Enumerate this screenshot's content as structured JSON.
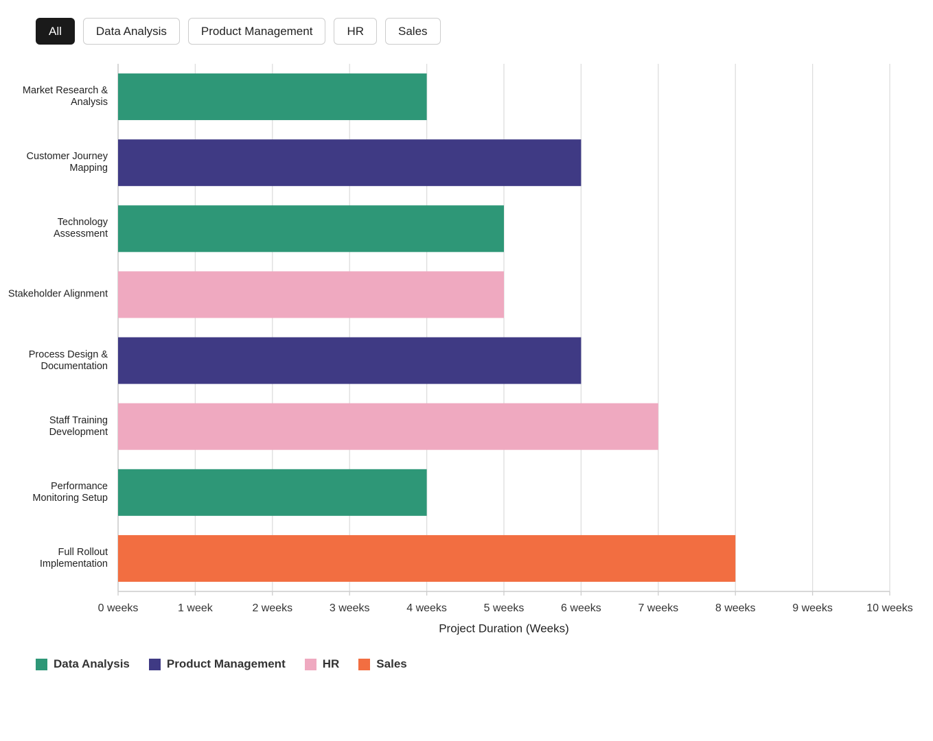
{
  "filters": [
    "All",
    "Data Analysis",
    "Product Management",
    "HR",
    "Sales"
  ],
  "active_filter": 0,
  "chart_data": {
    "type": "bar",
    "orientation": "horizontal",
    "categories": [
      "Market Research & Analysis",
      "Customer Journey Mapping",
      "Technology Assessment",
      "Stakeholder Alignment",
      "Process Design & Documentation",
      "Staff Training Development",
      "Performance Monitoring Setup",
      "Full Rollout Implementation"
    ],
    "series": [
      {
        "name": "Data Analysis",
        "color": "#2e9777",
        "values": [
          4,
          null,
          5,
          null,
          null,
          null,
          4,
          null
        ]
      },
      {
        "name": "Product Management",
        "color": "#3f3a84",
        "values": [
          null,
          6,
          null,
          null,
          6,
          null,
          null,
          null
        ]
      },
      {
        "name": "HR",
        "color": "#efa9c0",
        "values": [
          null,
          null,
          null,
          5,
          null,
          7,
          null,
          null
        ]
      },
      {
        "name": "Sales",
        "color": "#f26e41",
        "values": [
          null,
          null,
          null,
          null,
          null,
          null,
          null,
          8
        ]
      }
    ],
    "xlabel": "Project Duration (Weeks)",
    "xlim": [
      0,
      10
    ],
    "xticks": [
      {
        "value": 0,
        "label": "0 weeks"
      },
      {
        "value": 1,
        "label": "1 week"
      },
      {
        "value": 2,
        "label": "2 weeks"
      },
      {
        "value": 3,
        "label": "3 weeks"
      },
      {
        "value": 4,
        "label": "4 weeks"
      },
      {
        "value": 5,
        "label": "5 weeks"
      },
      {
        "value": 6,
        "label": "6 weeks"
      },
      {
        "value": 7,
        "label": "7 weeks"
      },
      {
        "value": 8,
        "label": "8 weeks"
      },
      {
        "value": 9,
        "label": "9 weeks"
      },
      {
        "value": 10,
        "label": "10 weeks"
      }
    ],
    "grid": true
  }
}
